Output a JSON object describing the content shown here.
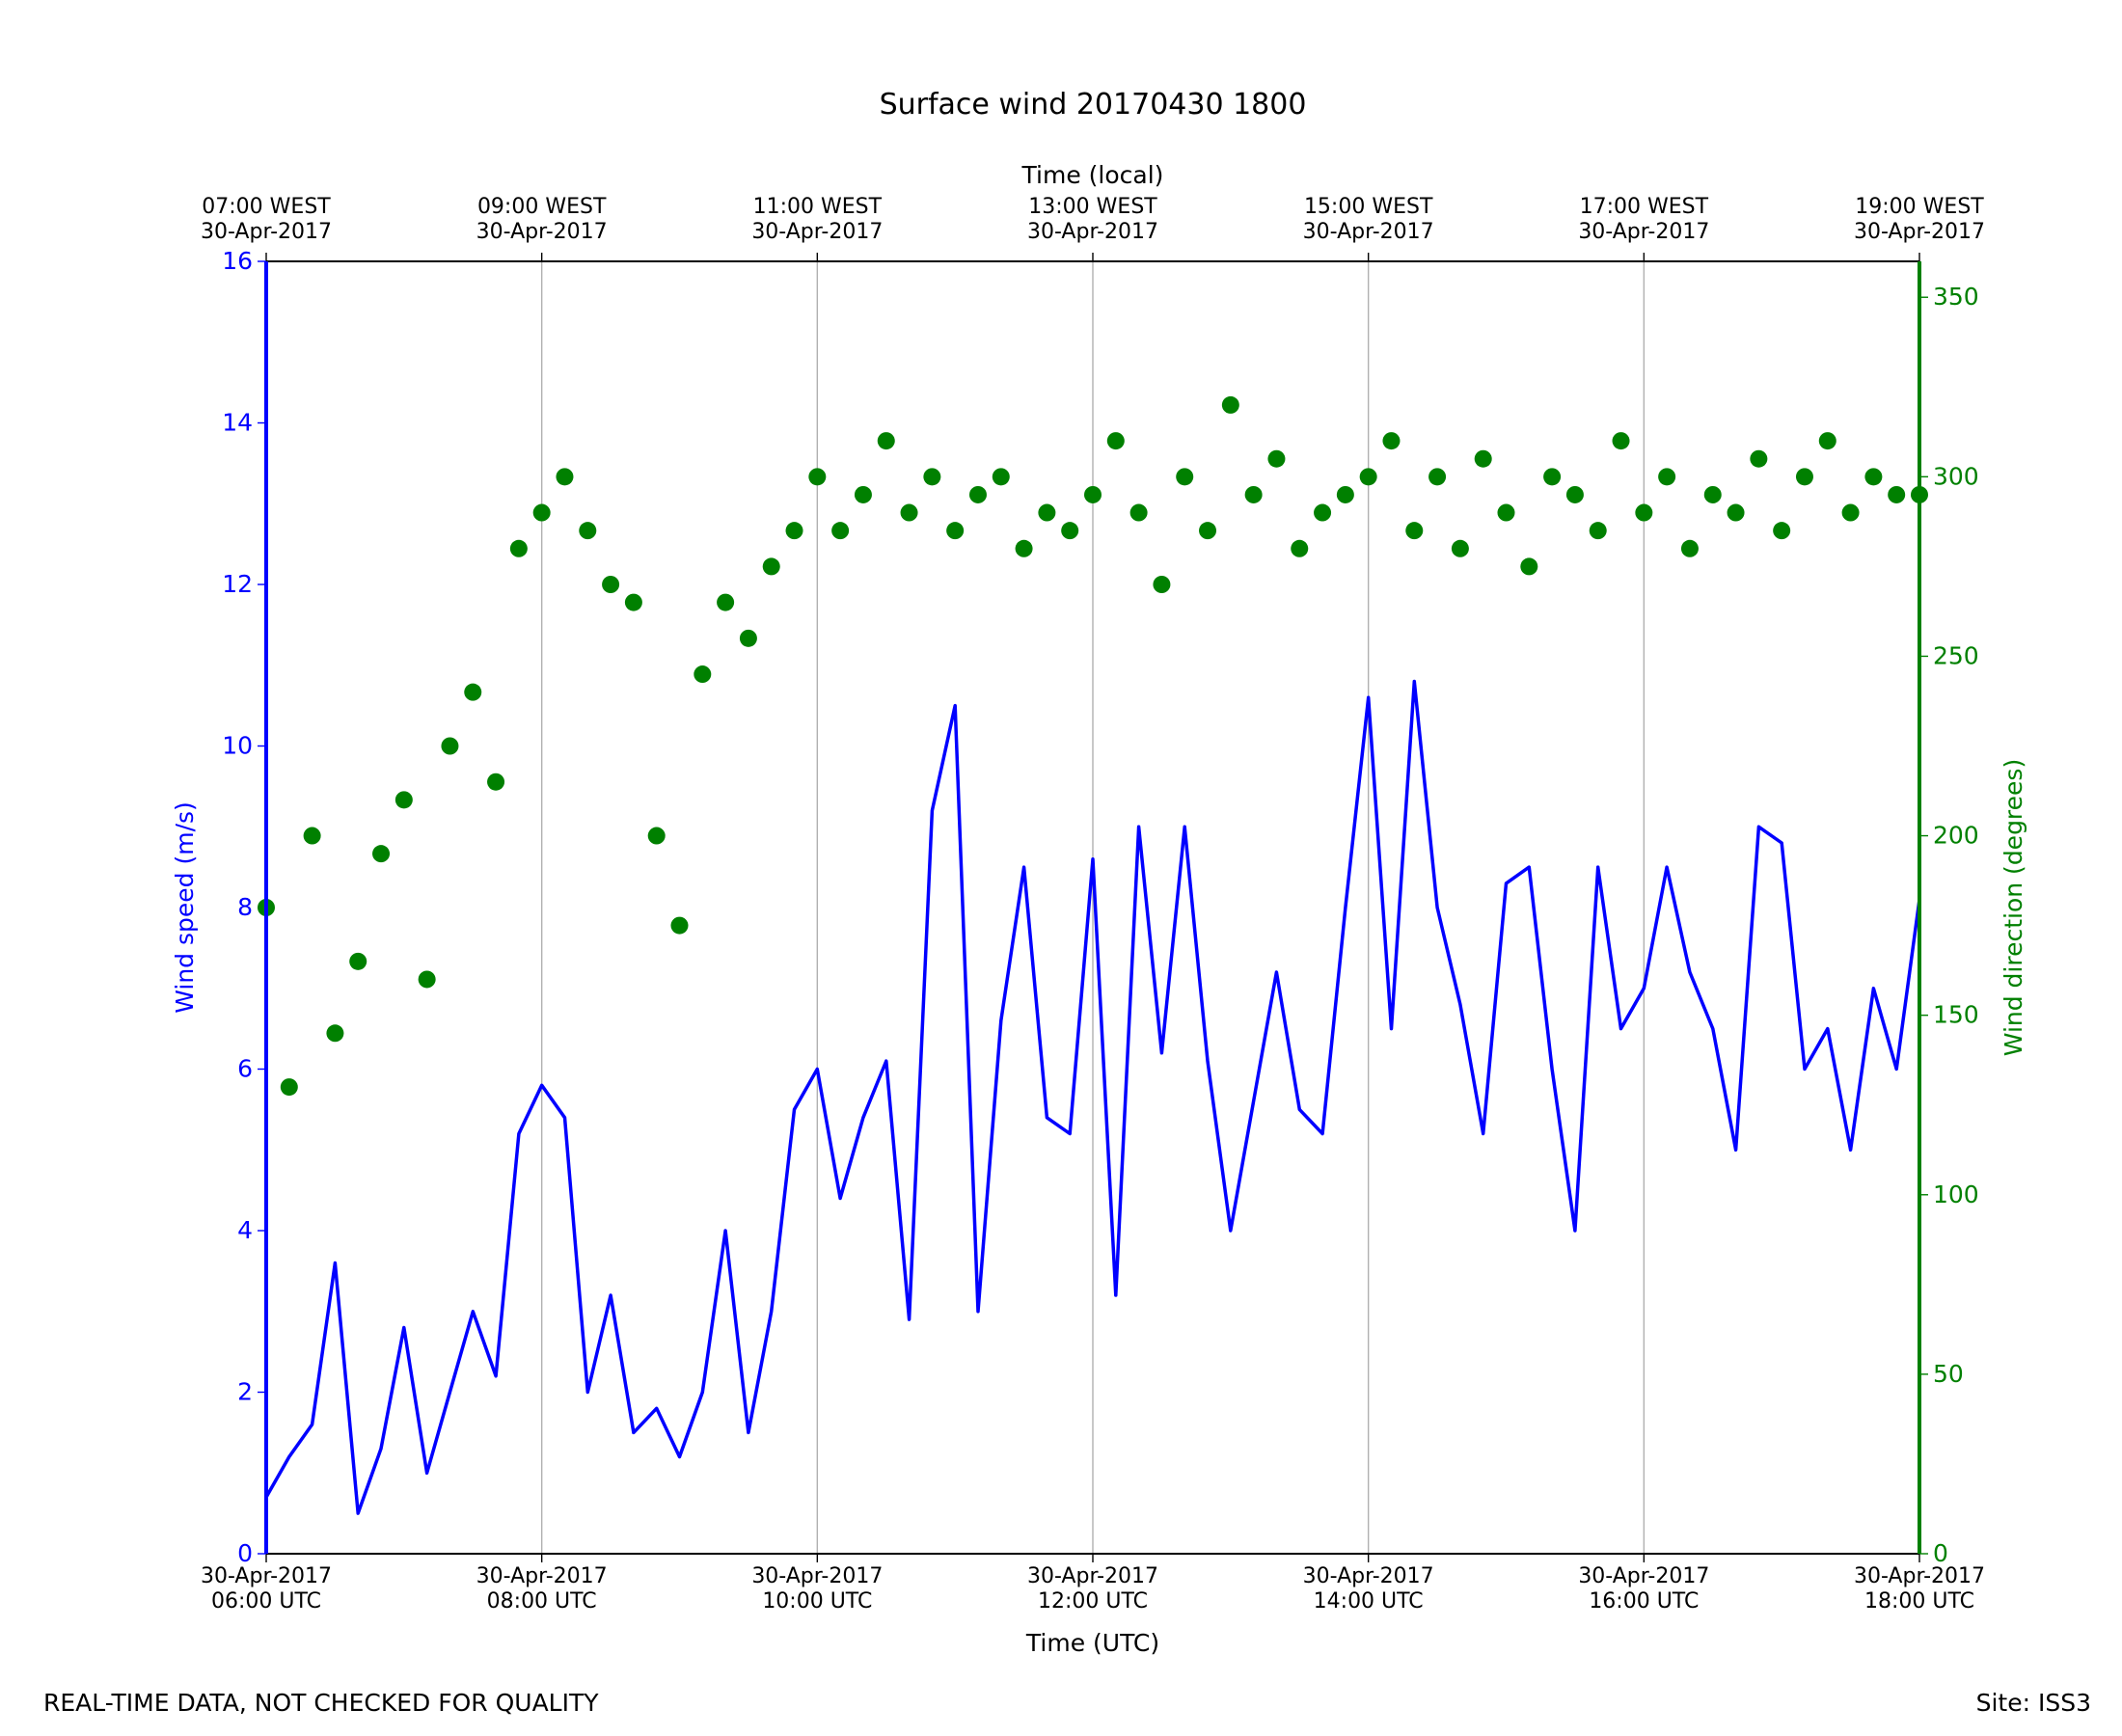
{
  "chart_data": {
    "type": "line_scatter",
    "title": "Surface wind 20170430 1800",
    "xlabel": "Time (UTC)",
    "x2label": "Time (local)",
    "ylabel": "Wind speed (m/s)",
    "y2label": "Wind direction (degrees)",
    "footnote_left": "REAL-TIME DATA, NOT CHECKED FOR QUALITY",
    "footnote_right": "Site: ISS3",
    "grid": true,
    "xlim": [
      "2017-04-30T06:00",
      "2017-04-30T18:00"
    ],
    "xticks": [
      {
        "value": "2017-04-30T06:00",
        "label": [
          "30-Apr-2017",
          "06:00 UTC"
        ]
      },
      {
        "value": "2017-04-30T08:00",
        "label": [
          "30-Apr-2017",
          "08:00 UTC"
        ]
      },
      {
        "value": "2017-04-30T10:00",
        "label": [
          "30-Apr-2017",
          "10:00 UTC"
        ]
      },
      {
        "value": "2017-04-30T12:00",
        "label": [
          "30-Apr-2017",
          "12:00 UTC"
        ]
      },
      {
        "value": "2017-04-30T14:00",
        "label": [
          "30-Apr-2017",
          "14:00 UTC"
        ]
      },
      {
        "value": "2017-04-30T16:00",
        "label": [
          "30-Apr-2017",
          "16:00 UTC"
        ]
      },
      {
        "value": "2017-04-30T18:00",
        "label": [
          "30-Apr-2017",
          "18:00 UTC"
        ]
      }
    ],
    "x2ticks": [
      {
        "value": "2017-04-30T06:00",
        "label": [
          "07:00 WEST",
          "30-Apr-2017"
        ]
      },
      {
        "value": "2017-04-30T08:00",
        "label": [
          "09:00 WEST",
          "30-Apr-2017"
        ]
      },
      {
        "value": "2017-04-30T10:00",
        "label": [
          "11:00 WEST",
          "30-Apr-2017"
        ]
      },
      {
        "value": "2017-04-30T12:00",
        "label": [
          "13:00 WEST",
          "30-Apr-2017"
        ]
      },
      {
        "value": "2017-04-30T14:00",
        "label": [
          "15:00 WEST",
          "30-Apr-2017"
        ]
      },
      {
        "value": "2017-04-30T16:00",
        "label": [
          "17:00 WEST",
          "30-Apr-2017"
        ]
      },
      {
        "value": "2017-04-30T18:00",
        "label": [
          "19:00 WEST",
          "30-Apr-2017"
        ]
      }
    ],
    "ylim": [
      0,
      16
    ],
    "yticks": [
      0,
      2,
      4,
      6,
      8,
      10,
      12,
      14,
      16
    ],
    "y2lim": [
      0,
      360
    ],
    "y2ticks": [
      0,
      50,
      100,
      150,
      200,
      250,
      300,
      350
    ],
    "x": [
      "2017-04-30T06:00",
      "2017-04-30T06:10",
      "2017-04-30T06:20",
      "2017-04-30T06:30",
      "2017-04-30T06:40",
      "2017-04-30T06:50",
      "2017-04-30T07:00",
      "2017-04-30T07:10",
      "2017-04-30T07:20",
      "2017-04-30T07:30",
      "2017-04-30T07:40",
      "2017-04-30T07:50",
      "2017-04-30T08:00",
      "2017-04-30T08:10",
      "2017-04-30T08:20",
      "2017-04-30T08:30",
      "2017-04-30T08:40",
      "2017-04-30T08:50",
      "2017-04-30T09:00",
      "2017-04-30T09:10",
      "2017-04-30T09:20",
      "2017-04-30T09:30",
      "2017-04-30T09:40",
      "2017-04-30T09:50",
      "2017-04-30T10:00",
      "2017-04-30T10:10",
      "2017-04-30T10:20",
      "2017-04-30T10:30",
      "2017-04-30T10:40",
      "2017-04-30T10:50",
      "2017-04-30T11:00",
      "2017-04-30T11:10",
      "2017-04-30T11:20",
      "2017-04-30T11:30",
      "2017-04-30T11:40",
      "2017-04-30T11:50",
      "2017-04-30T12:00",
      "2017-04-30T12:10",
      "2017-04-30T12:20",
      "2017-04-30T12:30",
      "2017-04-30T12:40",
      "2017-04-30T12:50",
      "2017-04-30T13:00",
      "2017-04-30T13:10",
      "2017-04-30T13:20",
      "2017-04-30T13:30",
      "2017-04-30T13:40",
      "2017-04-30T13:50",
      "2017-04-30T14:00",
      "2017-04-30T14:10",
      "2017-04-30T14:20",
      "2017-04-30T14:30",
      "2017-04-30T14:40",
      "2017-04-30T14:50",
      "2017-04-30T15:00",
      "2017-04-30T15:10",
      "2017-04-30T15:20",
      "2017-04-30T15:30",
      "2017-04-30T15:40",
      "2017-04-30T15:50",
      "2017-04-30T16:00",
      "2017-04-30T16:10",
      "2017-04-30T16:20",
      "2017-04-30T16:30",
      "2017-04-30T16:40",
      "2017-04-30T16:50",
      "2017-04-30T17:00",
      "2017-04-30T17:10",
      "2017-04-30T17:20",
      "2017-04-30T17:30",
      "2017-04-30T17:40",
      "2017-04-30T17:50",
      "2017-04-30T18:00"
    ],
    "series": [
      {
        "kind": "line",
        "axis": "y",
        "color": "#0000ff",
        "values": [
          0.7,
          1.2,
          1.6,
          3.6,
          0.5,
          1.3,
          2.8,
          1.0,
          2.0,
          3.0,
          2.2,
          5.2,
          5.8,
          5.4,
          2.0,
          3.2,
          1.5,
          1.8,
          1.2,
          2.0,
          4.0,
          1.5,
          3.0,
          5.5,
          6.0,
          4.4,
          5.4,
          6.1,
          2.9,
          9.2,
          10.5,
          3.0,
          6.6,
          8.5,
          5.4,
          5.2,
          8.6,
          3.2,
          9.0,
          6.2,
          9.0,
          6.1,
          4.0,
          5.6,
          7.2,
          5.5,
          5.2,
          8.0,
          10.6,
          6.5,
          10.8,
          8.0,
          6.8,
          5.2,
          8.3,
          8.5,
          6.0,
          4.0,
          8.5,
          6.5,
          7.0,
          8.5,
          7.2,
          6.5,
          5.0,
          9.0,
          8.8,
          6.0,
          6.5,
          5.0,
          7.0,
          6.0,
          8.1
        ]
      },
      {
        "kind": "scatter",
        "axis": "y2",
        "color": "#008000",
        "values": [
          180,
          130,
          200,
          145,
          165,
          195,
          210,
          160,
          225,
          240,
          215,
          280,
          290,
          300,
          285,
          270,
          265,
          200,
          175,
          245,
          265,
          255,
          275,
          285,
          300,
          285,
          295,
          310,
          290,
          300,
          285,
          295,
          300,
          280,
          290,
          285,
          295,
          310,
          290,
          270,
          300,
          285,
          320,
          295,
          305,
          280,
          290,
          295,
          300,
          310,
          285,
          300,
          280,
          305,
          290,
          275,
          300,
          295,
          285,
          310,
          290,
          300,
          280,
          295,
          290,
          305,
          285,
          300,
          310,
          290,
          300,
          295,
          295
        ]
      }
    ]
  }
}
